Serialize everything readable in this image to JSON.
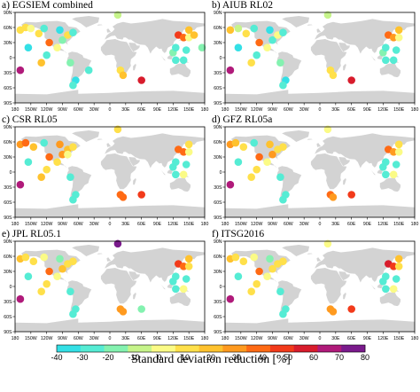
{
  "chart_data": {
    "type": "scatter",
    "map_projection": "equirectangular",
    "land_color": "#d3d3d3",
    "longitude_ticks": [
      "180",
      "150W",
      "120W",
      "90W",
      "60W",
      "30W",
      "0",
      "30E",
      "60E",
      "90E",
      "120E",
      "150E",
      "180"
    ],
    "latitude_ticks": [
      "90N",
      "60N",
      "30N",
      "0",
      "30S",
      "60S",
      "90S"
    ],
    "colorbar": {
      "label": "Standard deviation reduction [%]",
      "ticks": [
        "-40",
        "-30",
        "-20",
        "-10",
        "0",
        "10",
        "20",
        "30",
        "40",
        "50",
        "60",
        "70",
        "80"
      ],
      "colors": [
        "#33e0e6",
        "#55ecd4",
        "#84f2b0",
        "#c6f48a",
        "#fbfb86",
        "#ffe04a",
        "#ffc22e",
        "#ff9a1f",
        "#ff6a14",
        "#f23a1a",
        "#d81c2c",
        "#b01a7a",
        "#7a1a8c"
      ]
    },
    "panels": [
      {
        "title": "a) EGSIEM combined",
        "points": [
          {
            "lon": -170,
            "lat": 55,
            "v": 15
          },
          {
            "lon": -160,
            "lat": 60,
            "v": 10
          },
          {
            "lon": -150,
            "lat": 58,
            "v": 0
          },
          {
            "lon": -135,
            "lat": 48,
            "v": 15
          },
          {
            "lon": -125,
            "lat": 58,
            "v": -30
          },
          {
            "lon": -115,
            "lat": 30,
            "v": 45
          },
          {
            "lon": -155,
            "lat": 20,
            "v": -35
          },
          {
            "lon": -100,
            "lat": 20,
            "v": 5
          },
          {
            "lon": -90,
            "lat": 35,
            "v": -20
          },
          {
            "lon": -95,
            "lat": 55,
            "v": -35
          },
          {
            "lon": -80,
            "lat": 45,
            "v": 10
          },
          {
            "lon": -70,
            "lat": 50,
            "v": -25
          },
          {
            "lon": -120,
            "lat": 5,
            "v": -30
          },
          {
            "lon": -130,
            "lat": -10,
            "v": 20
          },
          {
            "lon": -170,
            "lat": -25,
            "v": 75
          },
          {
            "lon": -75,
            "lat": -10,
            "v": -20
          },
          {
            "lon": -65,
            "lat": -45,
            "v": -35
          },
          {
            "lon": -70,
            "lat": -55,
            "v": -30
          },
          {
            "lon": -40,
            "lat": -25,
            "v": -30
          },
          {
            "lon": 15,
            "lat": 85,
            "v": -10
          },
          {
            "lon": 20,
            "lat": -25,
            "v": 15
          },
          {
            "lon": 25,
            "lat": -35,
            "v": 20
          },
          {
            "lon": 60,
            "lat": -45,
            "v": 60
          },
          {
            "lon": 130,
            "lat": 45,
            "v": 55
          },
          {
            "lon": 140,
            "lat": 40,
            "v": 45
          },
          {
            "lon": 150,
            "lat": 40,
            "v": 5
          },
          {
            "lon": 120,
            "lat": 10,
            "v": -20
          },
          {
            "lon": 125,
            "lat": 20,
            "v": -30
          },
          {
            "lon": 145,
            "lat": 15,
            "v": -25
          },
          {
            "lon": 150,
            "lat": 55,
            "v": 25
          },
          {
            "lon": 160,
            "lat": 45,
            "v": 20
          },
          {
            "lon": 125,
            "lat": -5,
            "v": -30
          },
          {
            "lon": 140,
            "lat": -5,
            "v": -25
          },
          {
            "lon": 175,
            "lat": 20,
            "v": -20
          }
        ]
      },
      {
        "title": "b) AIUB RL02",
        "points": [
          {
            "lon": -170,
            "lat": 55,
            "v": 20
          },
          {
            "lon": -155,
            "lat": 58,
            "v": -10
          },
          {
            "lon": -140,
            "lat": 48,
            "v": 10
          },
          {
            "lon": -125,
            "lat": 58,
            "v": -30
          },
          {
            "lon": -115,
            "lat": 30,
            "v": 45
          },
          {
            "lon": -155,
            "lat": 20,
            "v": -35
          },
          {
            "lon": -100,
            "lat": 20,
            "v": 5
          },
          {
            "lon": -90,
            "lat": 35,
            "v": -25
          },
          {
            "lon": -95,
            "lat": 55,
            "v": -35
          },
          {
            "lon": -80,
            "lat": 45,
            "v": 5
          },
          {
            "lon": -70,
            "lat": 50,
            "v": -25
          },
          {
            "lon": -120,
            "lat": 5,
            "v": -30
          },
          {
            "lon": -130,
            "lat": -10,
            "v": 15
          },
          {
            "lon": -170,
            "lat": -25,
            "v": 75
          },
          {
            "lon": -75,
            "lat": -10,
            "v": -20
          },
          {
            "lon": -65,
            "lat": -45,
            "v": -35
          },
          {
            "lon": -70,
            "lat": -55,
            "v": -30
          },
          {
            "lon": 15,
            "lat": 85,
            "v": -10
          },
          {
            "lon": 20,
            "lat": -25,
            "v": 15
          },
          {
            "lon": 25,
            "lat": -35,
            "v": 10
          },
          {
            "lon": 60,
            "lat": -45,
            "v": 60
          },
          {
            "lon": 130,
            "lat": 45,
            "v": 40
          },
          {
            "lon": 140,
            "lat": 40,
            "v": 30
          },
          {
            "lon": 150,
            "lat": 40,
            "v": 5
          },
          {
            "lon": 120,
            "lat": 10,
            "v": -20
          },
          {
            "lon": 125,
            "lat": 20,
            "v": -30
          },
          {
            "lon": 145,
            "lat": 15,
            "v": -25
          },
          {
            "lon": 150,
            "lat": 55,
            "v": 20
          },
          {
            "lon": 125,
            "lat": -5,
            "v": -30
          },
          {
            "lon": 140,
            "lat": -5,
            "v": -25
          }
        ]
      },
      {
        "title": "c) CSR RL05",
        "points": [
          {
            "lon": -170,
            "lat": 55,
            "v": 35
          },
          {
            "lon": -160,
            "lat": 58,
            "v": 45
          },
          {
            "lon": -145,
            "lat": 50,
            "v": 20
          },
          {
            "lon": -125,
            "lat": 58,
            "v": -25
          },
          {
            "lon": -115,
            "lat": 30,
            "v": 45
          },
          {
            "lon": -155,
            "lat": 20,
            "v": -30
          },
          {
            "lon": -100,
            "lat": 20,
            "v": 10
          },
          {
            "lon": -90,
            "lat": 35,
            "v": 35
          },
          {
            "lon": -95,
            "lat": 55,
            "v": 30
          },
          {
            "lon": -80,
            "lat": 45,
            "v": 20
          },
          {
            "lon": -70,
            "lat": 50,
            "v": 15
          },
          {
            "lon": -80,
            "lat": 35,
            "v": 5
          },
          {
            "lon": -120,
            "lat": 5,
            "v": 15
          },
          {
            "lon": -130,
            "lat": -10,
            "v": 25
          },
          {
            "lon": -170,
            "lat": -25,
            "v": 75
          },
          {
            "lon": -75,
            "lat": -10,
            "v": -30
          },
          {
            "lon": -65,
            "lat": -45,
            "v": -25
          },
          {
            "lon": -70,
            "lat": -55,
            "v": -30
          },
          {
            "lon": 15,
            "lat": 85,
            "v": 10
          },
          {
            "lon": 20,
            "lat": -45,
            "v": 40
          },
          {
            "lon": 25,
            "lat": -50,
            "v": 45
          },
          {
            "lon": 60,
            "lat": -45,
            "v": 55
          },
          {
            "lon": 130,
            "lat": 45,
            "v": 45
          },
          {
            "lon": 140,
            "lat": 40,
            "v": 40
          },
          {
            "lon": 150,
            "lat": 40,
            "v": 5
          },
          {
            "lon": 120,
            "lat": 10,
            "v": -25
          },
          {
            "lon": 125,
            "lat": 20,
            "v": -30
          },
          {
            "lon": 145,
            "lat": 15,
            "v": -25
          },
          {
            "lon": 150,
            "lat": 55,
            "v": 15
          },
          {
            "lon": 125,
            "lat": -5,
            "v": -30
          },
          {
            "lon": 140,
            "lat": -5,
            "v": 5
          }
        ]
      },
      {
        "title": "d) GFZ RL05a",
        "points": [
          {
            "lon": -170,
            "lat": 55,
            "v": 30
          },
          {
            "lon": -160,
            "lat": 58,
            "v": 20
          },
          {
            "lon": -145,
            "lat": 50,
            "v": 15
          },
          {
            "lon": -125,
            "lat": 58,
            "v": -25
          },
          {
            "lon": -115,
            "lat": 30,
            "v": 45
          },
          {
            "lon": -155,
            "lat": 20,
            "v": -25
          },
          {
            "lon": -100,
            "lat": 20,
            "v": 5
          },
          {
            "lon": -90,
            "lat": 35,
            "v": 30
          },
          {
            "lon": -95,
            "lat": 55,
            "v": 20
          },
          {
            "lon": -80,
            "lat": 45,
            "v": 10
          },
          {
            "lon": -70,
            "lat": 50,
            "v": 15
          },
          {
            "lon": -120,
            "lat": 5,
            "v": 10
          },
          {
            "lon": -130,
            "lat": -10,
            "v": 15
          },
          {
            "lon": -170,
            "lat": -25,
            "v": 75
          },
          {
            "lon": -75,
            "lat": -10,
            "v": -30
          },
          {
            "lon": -65,
            "lat": -45,
            "v": -25
          },
          {
            "lon": -70,
            "lat": -55,
            "v": -30
          },
          {
            "lon": 15,
            "lat": 85,
            "v": 5
          },
          {
            "lon": 20,
            "lat": -45,
            "v": 40
          },
          {
            "lon": 25,
            "lat": -50,
            "v": 30
          },
          {
            "lon": 60,
            "lat": -45,
            "v": 55
          },
          {
            "lon": 130,
            "lat": 45,
            "v": 45
          },
          {
            "lon": 140,
            "lat": 40,
            "v": 35
          },
          {
            "lon": 150,
            "lat": 40,
            "v": 5
          },
          {
            "lon": 120,
            "lat": 10,
            "v": -25
          },
          {
            "lon": 125,
            "lat": 20,
            "v": -30
          },
          {
            "lon": 145,
            "lat": 15,
            "v": -25
          },
          {
            "lon": 150,
            "lat": 55,
            "v": 15
          },
          {
            "lon": 125,
            "lat": -5,
            "v": -30
          },
          {
            "lon": 140,
            "lat": -5,
            "v": 5
          }
        ]
      },
      {
        "title": "e) JPL RL05.1",
        "points": [
          {
            "lon": -170,
            "lat": 55,
            "v": 20
          },
          {
            "lon": -160,
            "lat": 58,
            "v": 15
          },
          {
            "lon": -145,
            "lat": 50,
            "v": 10
          },
          {
            "lon": -125,
            "lat": 58,
            "v": 5
          },
          {
            "lon": -115,
            "lat": 30,
            "v": 45
          },
          {
            "lon": -155,
            "lat": 20,
            "v": -25
          },
          {
            "lon": -100,
            "lat": 20,
            "v": 5
          },
          {
            "lon": -90,
            "lat": 35,
            "v": 20
          },
          {
            "lon": -95,
            "lat": 55,
            "v": -20
          },
          {
            "lon": -80,
            "lat": 45,
            "v": 10
          },
          {
            "lon": -70,
            "lat": 50,
            "v": 15
          },
          {
            "lon": -120,
            "lat": 5,
            "v": 10
          },
          {
            "lon": -130,
            "lat": -10,
            "v": 15
          },
          {
            "lon": -170,
            "lat": -25,
            "v": 75
          },
          {
            "lon": -75,
            "lat": -10,
            "v": -30
          },
          {
            "lon": -65,
            "lat": -45,
            "v": -30
          },
          {
            "lon": -70,
            "lat": -55,
            "v": -25
          },
          {
            "lon": 15,
            "lat": 85,
            "v": 80
          },
          {
            "lon": 20,
            "lat": -45,
            "v": 30
          },
          {
            "lon": 25,
            "lat": -50,
            "v": 35
          },
          {
            "lon": 60,
            "lat": -45,
            "v": -20
          },
          {
            "lon": 130,
            "lat": 45,
            "v": 55
          },
          {
            "lon": 140,
            "lat": 40,
            "v": 45
          },
          {
            "lon": 150,
            "lat": 40,
            "v": 10
          },
          {
            "lon": 120,
            "lat": 10,
            "v": -25
          },
          {
            "lon": 125,
            "lat": 20,
            "v": -30
          },
          {
            "lon": 145,
            "lat": 15,
            "v": -25
          },
          {
            "lon": 150,
            "lat": 55,
            "v": 20
          },
          {
            "lon": 125,
            "lat": -5,
            "v": -30
          },
          {
            "lon": 140,
            "lat": -5,
            "v": 5
          }
        ]
      },
      {
        "title": "f) ITSG2016",
        "points": [
          {
            "lon": -170,
            "lat": 55,
            "v": 20
          },
          {
            "lon": -160,
            "lat": 58,
            "v": 15
          },
          {
            "lon": -145,
            "lat": 50,
            "v": 10
          },
          {
            "lon": -125,
            "lat": 58,
            "v": 5
          },
          {
            "lon": -115,
            "lat": 30,
            "v": 45
          },
          {
            "lon": -155,
            "lat": 20,
            "v": -25
          },
          {
            "lon": -100,
            "lat": 20,
            "v": 5
          },
          {
            "lon": -90,
            "lat": 35,
            "v": 15
          },
          {
            "lon": -95,
            "lat": 55,
            "v": -20
          },
          {
            "lon": -80,
            "lat": 45,
            "v": 10
          },
          {
            "lon": -70,
            "lat": 50,
            "v": 15
          },
          {
            "lon": -120,
            "lat": 5,
            "v": 10
          },
          {
            "lon": -130,
            "lat": -10,
            "v": 15
          },
          {
            "lon": -170,
            "lat": -25,
            "v": 75
          },
          {
            "lon": -75,
            "lat": -10,
            "v": -30
          },
          {
            "lon": -65,
            "lat": -45,
            "v": -30
          },
          {
            "lon": -70,
            "lat": -55,
            "v": -25
          },
          {
            "lon": 15,
            "lat": 85,
            "v": 5
          },
          {
            "lon": 20,
            "lat": -45,
            "v": 30
          },
          {
            "lon": 25,
            "lat": -50,
            "v": 35
          },
          {
            "lon": 60,
            "lat": -45,
            "v": 55
          },
          {
            "lon": 130,
            "lat": 45,
            "v": 60
          },
          {
            "lon": 140,
            "lat": 40,
            "v": 50
          },
          {
            "lon": 150,
            "lat": 40,
            "v": 10
          },
          {
            "lon": 120,
            "lat": 10,
            "v": -25
          },
          {
            "lon": 125,
            "lat": 20,
            "v": -30
          },
          {
            "lon": 145,
            "lat": 15,
            "v": -25
          },
          {
            "lon": 150,
            "lat": 55,
            "v": 20
          },
          {
            "lon": 125,
            "lat": -5,
            "v": -30
          },
          {
            "lon": 140,
            "lat": -5,
            "v": 5
          }
        ]
      }
    ]
  }
}
